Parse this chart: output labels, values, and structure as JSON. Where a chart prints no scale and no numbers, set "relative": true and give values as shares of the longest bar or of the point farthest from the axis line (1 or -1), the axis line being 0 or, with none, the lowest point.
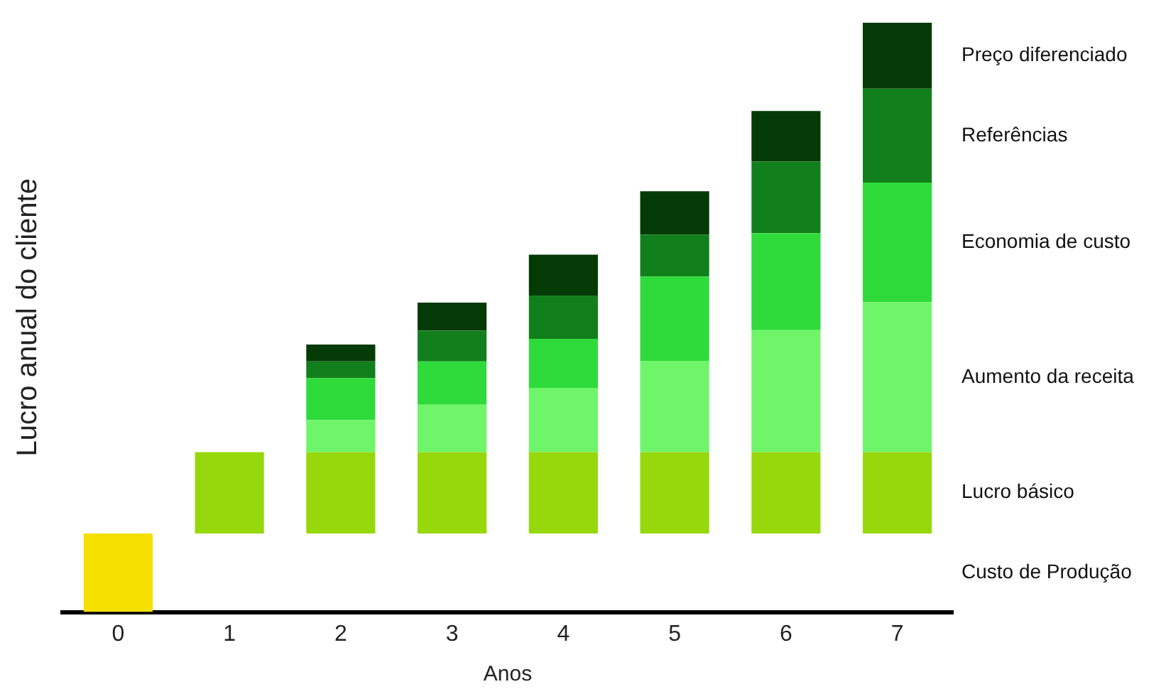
{
  "chart_data": {
    "type": "bar",
    "stacked": true,
    "relative": true,
    "xlabel": "Anos",
    "ylabel": "Lucro anual do cliente",
    "categories": [
      "0",
      "1",
      "2",
      "3",
      "4",
      "5",
      "6",
      "7"
    ],
    "legend": false,
    "grid": false,
    "series": [
      {
        "name": "Custo de Produção",
        "color": "#f5e000",
        "values": [
          -0.154,
          null,
          null,
          null,
          null,
          null,
          null,
          null
        ]
      },
      {
        "name": "Lucro básico",
        "color": "#96d80c",
        "values": [
          null,
          0.159,
          0.159,
          0.159,
          0.159,
          0.159,
          0.159,
          0.159
        ]
      },
      {
        "name": "Aumento da receita",
        "color": "#6ff56a",
        "values": [
          null,
          null,
          0.063,
          0.093,
          0.126,
          0.179,
          0.239,
          0.294
        ]
      },
      {
        "name": "Economia de custo",
        "color": "#2edb3a",
        "values": [
          null,
          null,
          0.082,
          0.085,
          0.096,
          0.165,
          0.19,
          0.234
        ]
      },
      {
        "name": "Referências",
        "color": "#117f1c",
        "values": [
          null,
          null,
          0.033,
          0.06,
          0.085,
          0.082,
          0.14,
          0.184
        ]
      },
      {
        "name": "Preço diferenciado",
        "color": "#043a05",
        "values": [
          null,
          null,
          0.033,
          0.055,
          0.08,
          0.085,
          0.099,
          0.129
        ]
      }
    ]
  }
}
